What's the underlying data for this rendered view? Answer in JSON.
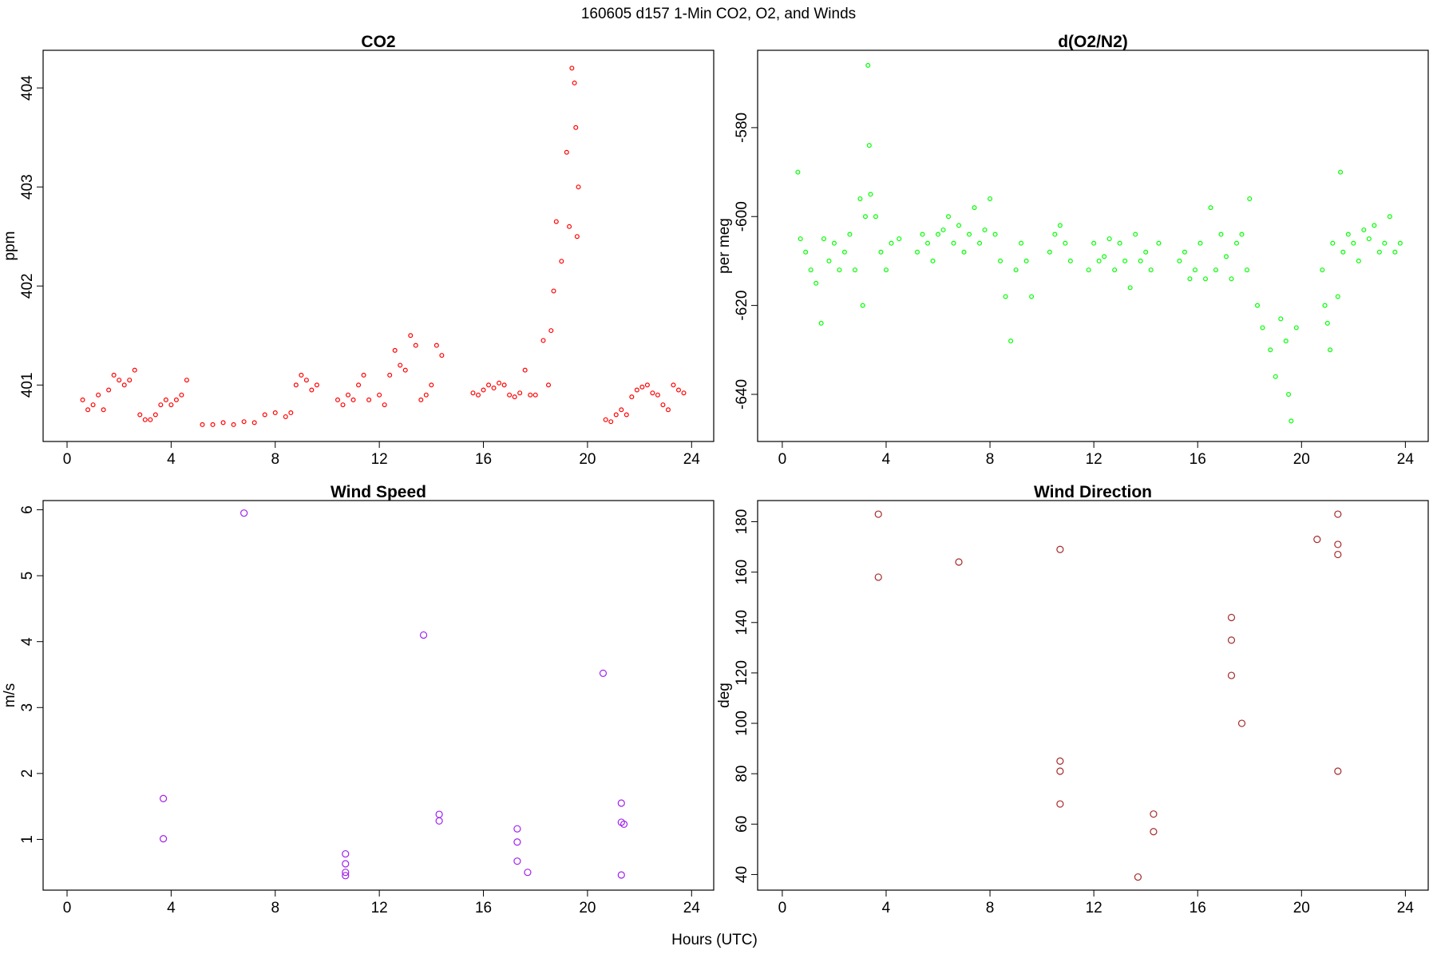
{
  "title": "160605   d157   1-Min CO2, O2, and Winds",
  "xlabel": "Hours (UTC)",
  "chart_data": [
    {
      "type": "scatter",
      "title": "CO2",
      "ylabel": "ppm",
      "color": "#ff0000",
      "xlim": [
        -0.92,
        24.85
      ],
      "ylim": [
        400.43,
        404.38
      ],
      "xticks": [
        0,
        4,
        8,
        12,
        16,
        20,
        24
      ],
      "yticks": [
        401,
        402,
        403,
        404
      ],
      "x": [
        0.6,
        0.8,
        1.0,
        1.2,
        1.4,
        1.6,
        1.8,
        2.0,
        2.2,
        2.4,
        2.6,
        2.8,
        3.0,
        3.2,
        3.4,
        3.6,
        3.8,
        4.0,
        4.2,
        4.4,
        4.6,
        5.2,
        5.6,
        6.0,
        6.4,
        6.8,
        7.2,
        7.6,
        8.0,
        8.4,
        8.6,
        8.8,
        9.0,
        9.2,
        9.4,
        9.6,
        10.4,
        10.6,
        10.8,
        11.0,
        11.2,
        11.4,
        11.6,
        12.0,
        12.2,
        12.4,
        12.6,
        12.8,
        13.0,
        13.2,
        13.4,
        13.6,
        13.8,
        14.0,
        14.2,
        14.4,
        15.6,
        15.8,
        16.0,
        16.2,
        16.4,
        16.6,
        16.8,
        17.0,
        17.2,
        17.4,
        17.6,
        17.8,
        18.0,
        18.3,
        18.5,
        18.6,
        18.7,
        18.8,
        19.0,
        19.2,
        19.3,
        19.4,
        19.5,
        19.55,
        19.6,
        19.65,
        20.7,
        20.9,
        21.1,
        21.3,
        21.5,
        21.7,
        21.9,
        22.1,
        22.3,
        22.5,
        22.7,
        22.9,
        23.1,
        23.3,
        23.5,
        23.7
      ],
      "values": [
        400.85,
        400.75,
        400.8,
        400.9,
        400.75,
        400.95,
        401.1,
        401.05,
        401.0,
        401.05,
        401.15,
        400.7,
        400.65,
        400.65,
        400.7,
        400.8,
        400.85,
        400.8,
        400.85,
        400.9,
        401.05,
        400.6,
        400.6,
        400.62,
        400.6,
        400.63,
        400.62,
        400.7,
        400.72,
        400.68,
        400.72,
        401.0,
        401.1,
        401.05,
        400.95,
        401.0,
        400.85,
        400.8,
        400.9,
        400.85,
        401.0,
        401.1,
        400.85,
        400.9,
        400.8,
        401.1,
        401.35,
        401.2,
        401.15,
        401.5,
        401.4,
        400.85,
        400.9,
        401.0,
        401.4,
        401.3,
        400.92,
        400.9,
        400.95,
        401.0,
        400.97,
        401.02,
        401.0,
        400.9,
        400.88,
        400.92,
        401.15,
        400.9,
        400.9,
        401.45,
        401.0,
        401.55,
        401.95,
        402.65,
        402.25,
        403.35,
        402.6,
        404.2,
        404.05,
        403.6,
        402.5,
        403.0,
        400.65,
        400.63,
        400.7,
        400.75,
        400.7,
        400.88,
        400.95,
        400.98,
        401.0,
        400.92,
        400.9,
        400.8,
        400.75,
        401.0,
        400.95,
        400.92
      ]
    },
    {
      "type": "scatter",
      "title": "d(O2/N2)",
      "ylabel": "per meg",
      "color": "#00ff00",
      "xlim": [
        -0.95,
        24.88
      ],
      "ylim": [
        -650.6,
        -562.6
      ],
      "xticks": [
        0,
        4,
        8,
        12,
        16,
        20,
        24
      ],
      "yticks": [
        -640,
        -620,
        -600,
        -580
      ],
      "x": [
        0.6,
        0.7,
        0.9,
        1.1,
        1.3,
        1.5,
        1.6,
        1.8,
        2.0,
        2.2,
        2.4,
        2.6,
        2.8,
        3.0,
        3.1,
        3.2,
        3.3,
        3.35,
        3.4,
        3.6,
        3.8,
        4.0,
        4.2,
        4.5,
        5.2,
        5.4,
        5.6,
        5.8,
        6.0,
        6.2,
        6.4,
        6.6,
        6.8,
        7.0,
        7.2,
        7.4,
        7.6,
        7.8,
        8.0,
        8.2,
        8.4,
        8.6,
        8.8,
        9.0,
        9.2,
        9.4,
        9.6,
        10.3,
        10.5,
        10.7,
        10.9,
        11.1,
        11.8,
        12.0,
        12.2,
        12.4,
        12.6,
        12.8,
        13.0,
        13.2,
        13.4,
        13.6,
        13.8,
        14.0,
        14.2,
        14.5,
        15.3,
        15.5,
        15.7,
        15.9,
        16.1,
        16.3,
        16.5,
        16.7,
        16.9,
        17.1,
        17.3,
        17.5,
        17.7,
        17.9,
        18.0,
        18.3,
        18.5,
        18.8,
        19.0,
        19.2,
        19.4,
        19.5,
        19.6,
        19.8,
        20.8,
        20.9,
        21.0,
        21.1,
        21.2,
        21.4,
        21.5,
        21.6,
        21.8,
        22.0,
        22.2,
        22.4,
        22.6,
        22.8,
        23.0,
        23.2,
        23.4,
        23.6,
        23.8
      ],
      "values": [
        -590,
        -605,
        -608,
        -612,
        -615,
        -624,
        -605,
        -610,
        -606,
        -612,
        -608,
        -604,
        -612,
        -596,
        -620,
        -600,
        -566,
        -584,
        -595,
        -600,
        -608,
        -612,
        -606,
        -605,
        -608,
        -604,
        -606,
        -610,
        -604,
        -603,
        -600,
        -606,
        -602,
        -608,
        -604,
        -598,
        -606,
        -603,
        -596,
        -604,
        -610,
        -618,
        -628,
        -612,
        -606,
        -610,
        -618,
        -608,
        -604,
        -602,
        -606,
        -610,
        -612,
        -606,
        -610,
        -609,
        -605,
        -612,
        -606,
        -610,
        -616,
        -604,
        -610,
        -608,
        -612,
        -606,
        -610,
        -608,
        -614,
        -612,
        -606,
        -614,
        -598,
        -612,
        -604,
        -609,
        -614,
        -606,
        -604,
        -612,
        -596,
        -620,
        -625,
        -630,
        -636,
        -623,
        -628,
        -640,
        -646,
        -625,
        -612,
        -620,
        -624,
        -630,
        -606,
        -618,
        -590,
        -608,
        -604,
        -606,
        -610,
        -603,
        -605,
        -602,
        -608,
        -606,
        -600,
        -608,
        -606
      ]
    },
    {
      "type": "scatter",
      "title": "Wind Speed",
      "ylabel": "m/s",
      "color": "#a020f0",
      "xlim": [
        -0.92,
        24.85
      ],
      "ylim": [
        0.23,
        6.14
      ],
      "xticks": [
        0,
        4,
        8,
        12,
        16,
        20,
        24
      ],
      "yticks": [
        1,
        2,
        3,
        4,
        5,
        6
      ],
      "x": [
        3.7,
        3.7,
        6.8,
        10.7,
        10.7,
        10.7,
        10.7,
        13.7,
        14.3,
        14.3,
        17.3,
        17.3,
        17.3,
        17.7,
        20.6,
        21.3,
        21.3,
        21.4,
        21.3
      ],
      "values": [
        1.62,
        1.01,
        5.95,
        0.78,
        0.63,
        0.5,
        0.45,
        4.1,
        1.38,
        1.28,
        1.16,
        0.96,
        0.67,
        0.5,
        3.52,
        1.55,
        1.26,
        1.23,
        0.46
      ]
    },
    {
      "type": "scatter",
      "title": "Wind Direction",
      "ylabel": "deg",
      "color": "#a52a2a",
      "xlim": [
        -0.95,
        24.88
      ],
      "ylim": [
        33.8,
        188.4
      ],
      "xticks": [
        0,
        4,
        8,
        12,
        16,
        20,
        24
      ],
      "yticks": [
        40,
        60,
        80,
        100,
        120,
        140,
        160,
        180
      ],
      "x": [
        3.7,
        3.7,
        6.8,
        10.7,
        10.7,
        10.7,
        10.7,
        13.7,
        14.3,
        14.3,
        17.3,
        17.3,
        17.3,
        17.7,
        20.6,
        21.4,
        21.4,
        21.4,
        21.4
      ],
      "values": [
        183,
        158,
        164,
        169,
        85,
        81,
        68,
        39,
        64,
        57,
        142,
        133,
        119,
        100,
        173,
        183,
        171,
        167,
        81
      ]
    }
  ]
}
